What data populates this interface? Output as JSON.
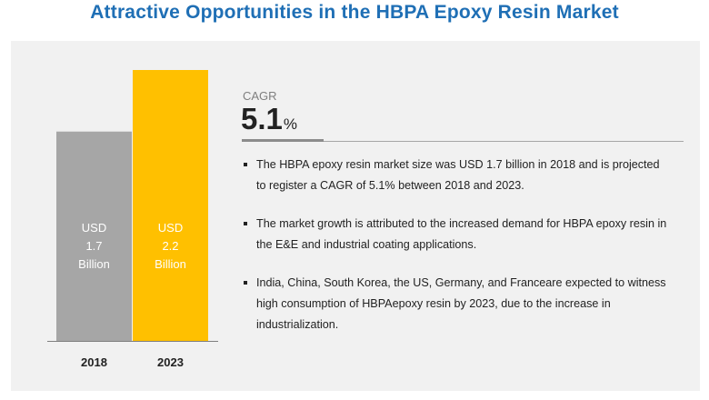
{
  "title": "Attractive Opportunities in the HBPA Epoxy Resin Market",
  "cagr": {
    "label": "CAGR",
    "value": "5.1",
    "unit": "%"
  },
  "bullets": [
    "The HBPA epoxy resin market size was USD 1.7 billion in 2018 and is projected to register a CAGR of 5.1% between 2018 and 2023.",
    "The market growth is attributed to the increased demand for HBPA epoxy resin in the E&E and industrial coating applications.",
    "India, China, South Korea, the US, Germany, and Franceare expected to witness high consumption of HBPAepoxy resin by 2023, due to the increase in industrialization."
  ],
  "chart_data": {
    "type": "bar",
    "categories": [
      "2018",
      "2023"
    ],
    "values": [
      1.7,
      2.2
    ],
    "unit": "USD Billion",
    "ylim": [
      0,
      2.2
    ],
    "grid": false,
    "data_labels": [
      [
        "USD",
        "1.7",
        "Billion"
      ],
      [
        "USD",
        "2.2",
        "Billion"
      ]
    ],
    "colors": [
      "#a6a6a6",
      "#ffc000"
    ]
  }
}
